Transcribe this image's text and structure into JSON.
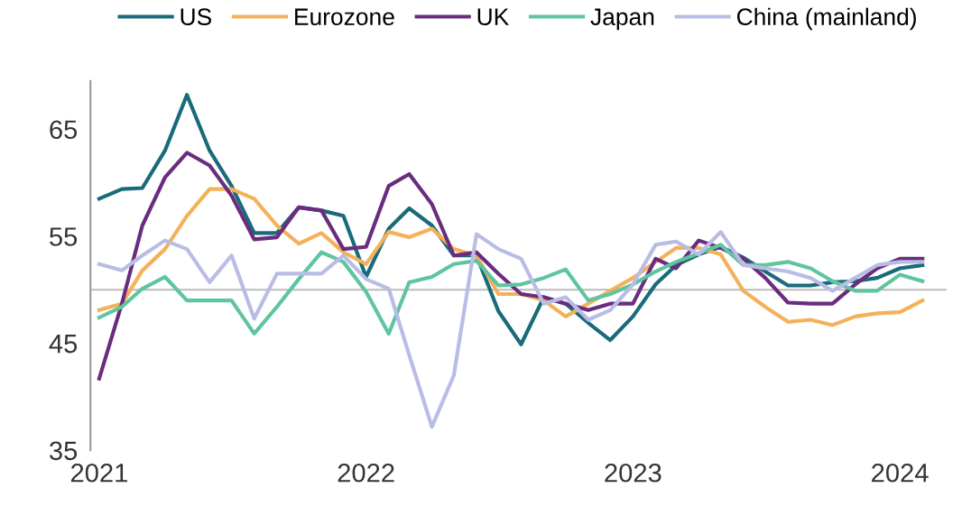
{
  "chart_data": {
    "type": "line",
    "x": [
      "2021-01",
      "2021-02",
      "2021-03",
      "2021-04",
      "2021-05",
      "2021-06",
      "2021-07",
      "2021-08",
      "2021-09",
      "2021-10",
      "2021-11",
      "2021-12",
      "2022-01",
      "2022-02",
      "2022-03",
      "2022-04",
      "2022-05",
      "2022-06",
      "2022-07",
      "2022-08",
      "2022-09",
      "2022-10",
      "2022-11",
      "2022-12",
      "2023-01",
      "2023-02",
      "2023-03",
      "2023-04",
      "2023-05",
      "2023-06",
      "2023-07",
      "2023-08",
      "2023-09",
      "2023-10",
      "2023-11",
      "2023-12",
      "2024-01",
      "2024-02"
    ],
    "series": [
      {
        "name": "US",
        "color": "#1a6b7a",
        "values": [
          58.5,
          59.4,
          59.5,
          63.0,
          68.2,
          63.0,
          59.7,
          55.3,
          55.3,
          57.7,
          57.4,
          56.9,
          51.2,
          55.7,
          57.6,
          56.0,
          53.2,
          53.2,
          48.0,
          44.9,
          49.3,
          48.7,
          46.9,
          45.3,
          47.5,
          50.5,
          52.3,
          53.3,
          54.0,
          53.0,
          51.7,
          50.4,
          50.4,
          50.7,
          50.8,
          51.1,
          52.0,
          52.3
        ]
      },
      {
        "name": "Eurozone",
        "color": "#f4b15a",
        "values": [
          48.1,
          48.7,
          51.8,
          53.8,
          56.9,
          59.4,
          59.4,
          58.5,
          56.0,
          54.3,
          55.3,
          53.5,
          52.4,
          55.4,
          54.9,
          55.7,
          53.8,
          53.2,
          49.6,
          49.6,
          49.0,
          47.5,
          48.7,
          49.9,
          51.1,
          52.6,
          53.9,
          53.9,
          53.3,
          49.9,
          48.4,
          47.0,
          47.2,
          46.7,
          47.5,
          47.8,
          47.9,
          49.0
        ]
      },
      {
        "name": "UK",
        "color": "#6a2c7e",
        "values": [
          41.7,
          48.7,
          56.0,
          60.5,
          62.8,
          61.6,
          58.8,
          54.7,
          54.9,
          57.7,
          57.4,
          53.8,
          54.0,
          59.7,
          60.8,
          58.0,
          53.2,
          53.5,
          51.5,
          49.6,
          49.3,
          48.7,
          48.1,
          48.7,
          48.7,
          52.9,
          52.0,
          54.6,
          53.9,
          52.9,
          51.1,
          48.8,
          48.7,
          48.7,
          50.5,
          52.0,
          52.9,
          52.9
        ]
      },
      {
        "name": "Japan",
        "color": "#5fc4a0",
        "values": [
          47.4,
          48.4,
          50.1,
          51.2,
          49.0,
          49.0,
          49.0,
          45.9,
          48.4,
          51.0,
          53.5,
          52.6,
          49.8,
          45.9,
          50.7,
          51.2,
          52.4,
          52.7,
          50.4,
          50.5,
          51.1,
          51.9,
          49.0,
          49.6,
          50.5,
          51.7,
          52.6,
          53.4,
          54.2,
          52.3,
          52.3,
          52.6,
          52.0,
          50.8,
          49.9,
          49.9,
          51.4,
          50.8
        ]
      },
      {
        "name": "China (mainland)",
        "color": "#b9bde6",
        "values": [
          52.4,
          51.8,
          53.2,
          54.6,
          53.8,
          50.7,
          53.2,
          47.3,
          51.5,
          51.5,
          51.5,
          53.2,
          51.0,
          50.1,
          43.9,
          37.2,
          42.0,
          55.2,
          53.8,
          52.9,
          48.7,
          49.3,
          47.2,
          48.1,
          50.5,
          54.2,
          54.5,
          53.3,
          55.4,
          52.3,
          52.0,
          51.7,
          51.1,
          49.9,
          51.1,
          52.3,
          52.6,
          52.6
        ]
      }
    ],
    "xlim": [
      "2020-12-20",
      "2024-03-05"
    ],
    "xticks": [
      {
        "value": "2021-01",
        "label": "2021"
      },
      {
        "value": "2022-01",
        "label": "2022"
      },
      {
        "value": "2023-01",
        "label": "2023"
      },
      {
        "value": "2024-01",
        "label": "2024"
      }
    ],
    "ylim": [
      35,
      69.5
    ],
    "yticks": [
      35,
      45,
      55,
      65
    ],
    "ref_lines": [
      {
        "axis": "y",
        "value": 50,
        "color": "#bbbbbb"
      }
    ],
    "grid": false,
    "legend": "top",
    "marker": "none",
    "line_style": "solid"
  }
}
